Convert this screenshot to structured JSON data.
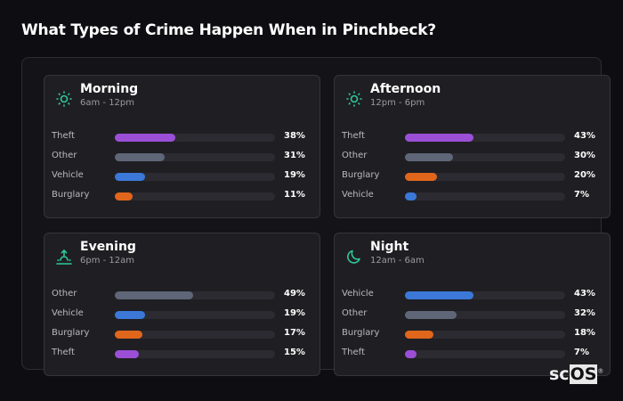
{
  "title": "What Types of Crime Happen When in Pinchbeck?",
  "colors": {
    "Theft": "#9b4fd6",
    "Other": "#5e6677",
    "Vehicle": "#3b78d8",
    "Burglary": "#e0661c",
    "icon": "#2ec99a"
  },
  "periods": [
    {
      "name": "Morning",
      "range": "6am - 12pm",
      "icon": "sun-icon",
      "rows": [
        {
          "label": "Theft",
          "pct": 38,
          "text": "38%"
        },
        {
          "label": "Other",
          "pct": 31,
          "text": "31%"
        },
        {
          "label": "Vehicle",
          "pct": 19,
          "text": "19%"
        },
        {
          "label": "Burglary",
          "pct": 11,
          "text": "11%"
        }
      ]
    },
    {
      "name": "Afternoon",
      "range": "12pm - 6pm",
      "icon": "sun-icon",
      "rows": [
        {
          "label": "Theft",
          "pct": 43,
          "text": "43%"
        },
        {
          "label": "Other",
          "pct": 30,
          "text": "30%"
        },
        {
          "label": "Burglary",
          "pct": 20,
          "text": "20%"
        },
        {
          "label": "Vehicle",
          "pct": 7,
          "text": "7%"
        }
      ]
    },
    {
      "name": "Evening",
      "range": "6pm - 12am",
      "icon": "sunset-icon",
      "rows": [
        {
          "label": "Other",
          "pct": 49,
          "text": "49%"
        },
        {
          "label": "Vehicle",
          "pct": 19,
          "text": "19%"
        },
        {
          "label": "Burglary",
          "pct": 17,
          "text": "17%"
        },
        {
          "label": "Theft",
          "pct": 15,
          "text": "15%"
        }
      ]
    },
    {
      "name": "Night",
      "range": "12am - 6am",
      "icon": "moon-icon",
      "rows": [
        {
          "label": "Vehicle",
          "pct": 43,
          "text": "43%"
        },
        {
          "label": "Other",
          "pct": 32,
          "text": "32%"
        },
        {
          "label": "Burglary",
          "pct": 18,
          "text": "18%"
        },
        {
          "label": "Theft",
          "pct": 7,
          "text": "7%"
        }
      ]
    }
  ],
  "logo": {
    "a": "sc",
    "b": "OS",
    "mark": "®"
  }
}
